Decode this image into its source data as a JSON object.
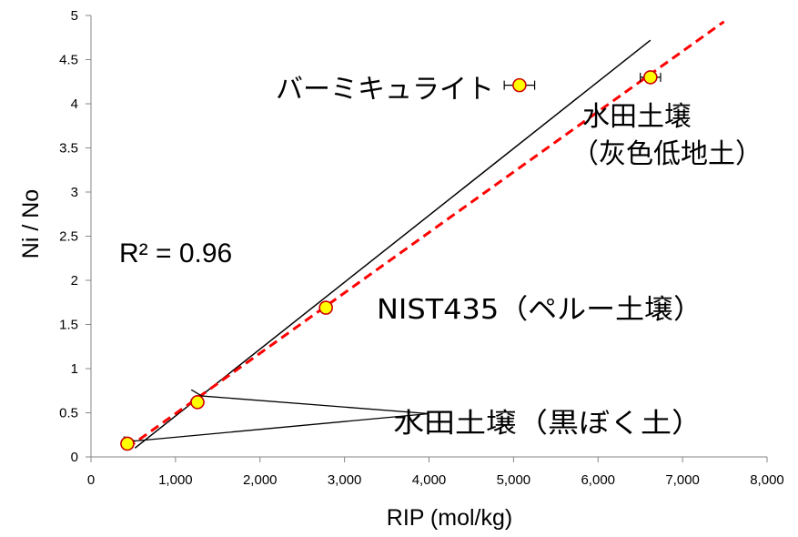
{
  "chart_data": {
    "type": "scatter",
    "xlabel": "RIP (mol/kg)",
    "ylabel": "Ni / No",
    "xlim": [
      0,
      8000
    ],
    "ylim": [
      0,
      5
    ],
    "x_ticks": [
      "0",
      "1,000",
      "2,000",
      "3,000",
      "4,000",
      "5,000",
      "6,000",
      "7,000",
      "8,000"
    ],
    "y_ticks": [
      "0",
      "0.5",
      "1",
      "1.5",
      "2",
      "2.5",
      "3",
      "3.5",
      "4",
      "4.5",
      "5"
    ],
    "grid": false,
    "points": [
      {
        "x": 430,
        "y": 0.15,
        "xerr": 0
      },
      {
        "x": 1260,
        "y": 0.62,
        "xerr": 0
      },
      {
        "x": 2780,
        "y": 1.69,
        "xerr": 0
      },
      {
        "x": 5070,
        "y": 4.21,
        "xerr": 180
      },
      {
        "x": 6620,
        "y": 4.3,
        "xerr": 120
      }
    ],
    "marker_fill": "#ffff00",
    "marker_edge": "#cc0000",
    "lines": [
      {
        "style": "solid",
        "color": "#000000",
        "from": [
          520,
          0.1
        ],
        "to": [
          6620,
          4.72
        ]
      },
      {
        "style": "dashed",
        "color": "#ff0000",
        "from": [
          430,
          0.1
        ],
        "to": [
          7490,
          4.93
        ]
      }
    ],
    "annotations": {
      "r2": "R² = 0.96",
      "vermiculite": "バーミキュライト",
      "paddy_gray_1": "水田土壌",
      "paddy_gray_2": "（灰色低地土）",
      "nist": "NIST435（ペルー土壌）",
      "paddy_andosol": "水田土壌（黒ぼく土）"
    },
    "arrows": [
      {
        "from": [
          4000,
          0.49
        ],
        "to": [
          1310,
          0.69
        ]
      },
      {
        "from": [
          4000,
          0.49
        ],
        "to": [
          520,
          0.18
        ]
      }
    ]
  }
}
